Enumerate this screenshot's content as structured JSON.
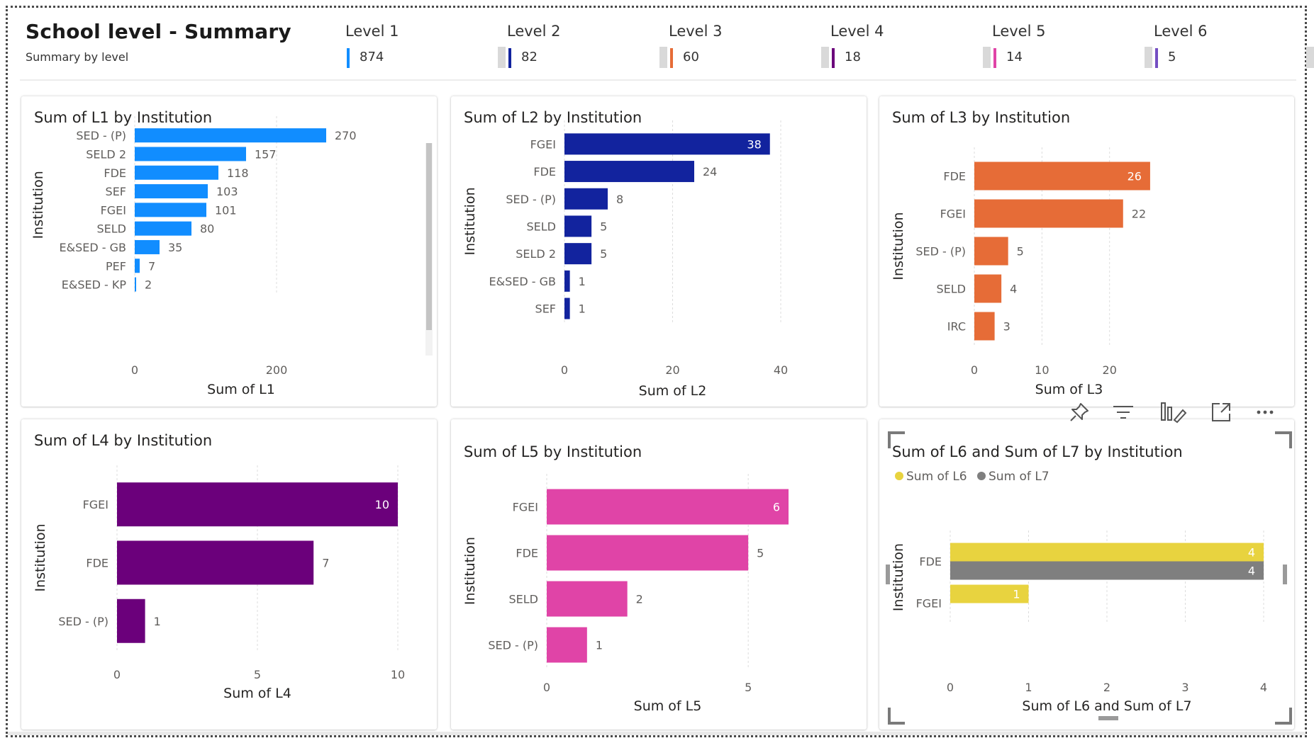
{
  "header": {
    "title": "School level - Summary",
    "subtitle": "Summary by level",
    "kpis": [
      {
        "label": "Level 1",
        "value": "874",
        "color": "#118DFF"
      },
      {
        "label": "Level 2",
        "value": "82",
        "color": "#12239E"
      },
      {
        "label": "Level 3",
        "value": "60",
        "color": "#E66C37"
      },
      {
        "label": "Level 4",
        "value": "18",
        "color": "#6B007B"
      },
      {
        "label": "Level 5",
        "value": "14",
        "color": "#E044A7"
      },
      {
        "label": "Level 6",
        "value": "5",
        "color": "#744EC2"
      }
    ]
  },
  "toolbar": {
    "icons": [
      "pin-icon",
      "filter-icon",
      "focus-mode-icon",
      "expand-icon",
      "more-options-icon"
    ]
  },
  "chart_data": [
    {
      "type": "bar",
      "orientation": "horizontal",
      "title": "Sum of L1 by Institution",
      "xlabel": "Sum of L1",
      "ylabel": "Institution",
      "categories": [
        "SED - (P)",
        "SELD 2",
        "FDE",
        "SEF",
        "FGEI",
        "SELD",
        "E&SED - GB",
        "PEF",
        "E&SED - KP"
      ],
      "values": [
        270,
        157,
        118,
        103,
        101,
        80,
        35,
        7,
        2
      ],
      "ticks": [
        0,
        200
      ],
      "xlim": [
        0,
        300
      ],
      "color": "#118DFF",
      "scrollbar": true,
      "grid": true
    },
    {
      "type": "bar",
      "orientation": "horizontal",
      "title": "Sum of L2 by Institution",
      "xlabel": "Sum of L2",
      "ylabel": "Institution",
      "categories": [
        "FGEI",
        "FDE",
        "SED - (P)",
        "SELD",
        "SELD 2",
        "E&SED - GB",
        "SEF"
      ],
      "values": [
        38,
        24,
        8,
        5,
        5,
        1,
        1
      ],
      "ticks": [
        0,
        20,
        40
      ],
      "xlim": [
        0,
        40
      ],
      "color": "#12239E",
      "grid": true
    },
    {
      "type": "bar",
      "orientation": "horizontal",
      "title": "Sum of L3 by Institution",
      "xlabel": "Sum of L3",
      "ylabel": "Institution",
      "categories": [
        "FDE",
        "FGEI",
        "SED - (P)",
        "SELD",
        "IRC"
      ],
      "values": [
        26,
        22,
        5,
        4,
        3
      ],
      "ticks": [
        0,
        10,
        20
      ],
      "xlim": [
        0,
        28
      ],
      "color": "#E66C37",
      "grid": true
    },
    {
      "type": "bar",
      "orientation": "horizontal",
      "title": "Sum of L4 by Institution",
      "xlabel": "Sum of L4",
      "ylabel": "Institution",
      "categories": [
        "FGEI",
        "FDE",
        "SED - (P)"
      ],
      "values": [
        10,
        7,
        1
      ],
      "ticks": [
        0,
        5,
        10
      ],
      "xlim": [
        0,
        10
      ],
      "color": "#6B007B",
      "grid": true
    },
    {
      "type": "bar",
      "orientation": "horizontal",
      "title": "Sum of L5 by Institution",
      "xlabel": "Sum of L5",
      "ylabel": "Institution",
      "categories": [
        "FGEI",
        "FDE",
        "SELD",
        "SED - (P)"
      ],
      "values": [
        6,
        5,
        2,
        1
      ],
      "ticks": [
        0,
        5
      ],
      "xlim": [
        0,
        6
      ],
      "color": "#E044A7",
      "grid": true
    },
    {
      "type": "bar",
      "orientation": "horizontal",
      "title": "Sum of L6 and Sum of L7 by Institution",
      "xlabel": "Sum of L6 and Sum of L7",
      "ylabel": "Institution",
      "categories": [
        "FDE",
        "FGEI"
      ],
      "series": [
        {
          "name": "Sum of L6",
          "values": [
            4,
            1
          ],
          "color": "#E8D33F"
        },
        {
          "name": "Sum of L7",
          "values": [
            4,
            null
          ],
          "color": "#7F7F7F"
        }
      ],
      "ticks": [
        0,
        1,
        2,
        3,
        4
      ],
      "xlim": [
        0,
        4
      ],
      "legend": "top-left",
      "grid": true
    }
  ]
}
